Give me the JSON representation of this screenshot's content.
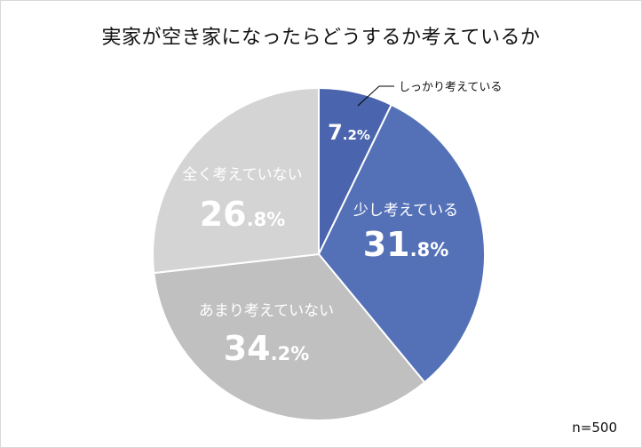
{
  "chart_data": {
    "type": "pie",
    "title": "実家が空き家になったらどうするか考えているか",
    "categories": [
      "しっかり考えている",
      "少し考えている",
      "あまり考えていない",
      "全く考えていない"
    ],
    "values": [
      7.2,
      31.8,
      34.2,
      26.8
    ],
    "value_labels": [
      {
        "int": "7",
        "dec": ".2%"
      },
      {
        "int": "31",
        "dec": ".8%"
      },
      {
        "int": "34",
        "dec": ".2%"
      },
      {
        "int": "26",
        "dec": ".8%"
      }
    ],
    "colors": [
      "#4a64ad",
      "#5471b8",
      "#c0c0c0",
      "#d4d4d4"
    ],
    "label_colors": [
      "#ffffff",
      "#ffffff",
      "#ffffff",
      "#ffffff"
    ],
    "start": "12 o'clock",
    "direction": "clockwise",
    "callout": "しっかり考えている",
    "note": "n=500"
  }
}
